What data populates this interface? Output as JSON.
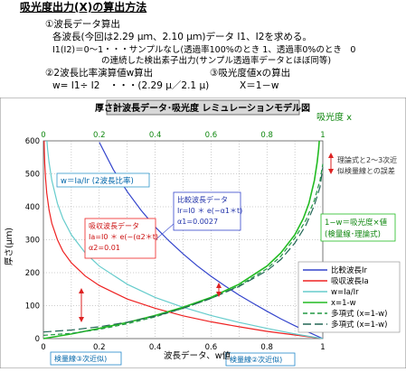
{
  "header": {
    "title": "吸光度出力(X)の算出方法",
    "line1": "①波長データ算出",
    "line2": "各波長(今回は2.29 μｍ、2.10 μｍ)データ I1、I2を求める。",
    "line3": "I1(I2)＝0～1・・・サンプルなし(透過率100%のとき 1、透過率0%のとき　0",
    "line4": "の連続した検出素子出力(サンプル透過率データとほぼ同等)",
    "line5a": "②2波長比率演算値w算出",
    "line5b": "③吸光度値xの算出",
    "line6a": "w= I1÷ I2　・・・(2.29 μ／2.1 μ)",
    "line6b": "X＝1－w"
  },
  "chart_data": {
    "type": "line",
    "title": "厚さ計波長データ･吸光度 レミュレーションモデル図",
    "top_axis_label": "吸光度 x",
    "xlabel": "波長データ、w値",
    "ylabel": "厚さ(μｍ)",
    "xlim": [
      0,
      1
    ],
    "ylim": [
      0,
      600
    ],
    "xticks": [
      "0",
      "0.2",
      "0.4",
      "0.6",
      "0.8",
      "1"
    ],
    "yticks": [
      "0",
      "100",
      "200",
      "300",
      "400",
      "500",
      "600"
    ],
    "top_ticks": [
      "0",
      "0.2",
      "0.4",
      "0.6",
      "0.8",
      "1"
    ],
    "grid": true,
    "legend_position": "lower-right",
    "params": {
      "alpha1": 0.0027,
      "alpha2": 0.01
    },
    "series": [
      {
        "name": "比較波長Ir",
        "color": "#3344cc",
        "dash": "solid",
        "points": [
          [
            1.0,
            0
          ],
          [
            0.95,
            19
          ],
          [
            0.9,
            39
          ],
          [
            0.85,
            60
          ],
          [
            0.8,
            83
          ],
          [
            0.75,
            107
          ],
          [
            0.7,
            132
          ],
          [
            0.65,
            160
          ],
          [
            0.6,
            189
          ],
          [
            0.55,
            221
          ],
          [
            0.5,
            257
          ],
          [
            0.45,
            296
          ],
          [
            0.4,
            339
          ],
          [
            0.35,
            389
          ],
          [
            0.3,
            446
          ],
          [
            0.25,
            513
          ],
          [
            0.2,
            596
          ]
        ]
      },
      {
        "name": "吸収波長Ia",
        "color": "#ee2222",
        "dash": "solid",
        "points": [
          [
            1.0,
            0
          ],
          [
            0.9,
            11
          ],
          [
            0.8,
            22
          ],
          [
            0.7,
            36
          ],
          [
            0.6,
            51
          ],
          [
            0.5,
            69
          ],
          [
            0.4,
            92
          ],
          [
            0.3,
            120
          ],
          [
            0.2,
            161
          ],
          [
            0.15,
            190
          ],
          [
            0.1,
            230
          ],
          [
            0.07,
            265
          ],
          [
            0.05,
            300
          ],
          [
            0.03,
            350
          ],
          [
            0.02,
            391
          ],
          [
            0.012,
            442
          ],
          [
            0.008,
            482
          ],
          [
            0.005,
            530
          ],
          [
            0.0035,
            565
          ],
          [
            0.0025,
            600
          ]
        ]
      },
      {
        "name": "w=Ia/Ir",
        "color": "#66cccc",
        "dash": "solid",
        "points": [
          [
            1.0,
            0
          ],
          [
            0.9,
            14
          ],
          [
            0.8,
            31
          ],
          [
            0.7,
            49
          ],
          [
            0.6,
            70
          ],
          [
            0.5,
            95
          ],
          [
            0.4,
            125
          ],
          [
            0.3,
            165
          ],
          [
            0.2,
            220
          ],
          [
            0.15,
            260
          ],
          [
            0.1,
            315
          ],
          [
            0.07,
            364
          ],
          [
            0.05,
            410
          ],
          [
            0.03,
            480
          ],
          [
            0.02,
            536
          ],
          [
            0.015,
            575
          ],
          [
            0.0125,
            600
          ]
        ]
      },
      {
        "name": "x=1-w",
        "color": "#22bb22",
        "dash": "solid",
        "points": [
          [
            0,
            0
          ],
          [
            0.1,
            14
          ],
          [
            0.2,
            31
          ],
          [
            0.3,
            49
          ],
          [
            0.4,
            70
          ],
          [
            0.5,
            95
          ],
          [
            0.6,
            125
          ],
          [
            0.7,
            165
          ],
          [
            0.8,
            220
          ],
          [
            0.85,
            260
          ],
          [
            0.9,
            315
          ],
          [
            0.93,
            364
          ],
          [
            0.95,
            410
          ],
          [
            0.97,
            480
          ],
          [
            0.98,
            536
          ],
          [
            0.985,
            575
          ],
          [
            0.9875,
            600
          ]
        ]
      },
      {
        "name": "多項式 (x=1-w)",
        "color": "#229944",
        "dash": "dash",
        "points": [
          [
            0,
            10
          ],
          [
            0.1,
            16
          ],
          [
            0.2,
            28
          ],
          [
            0.3,
            45
          ],
          [
            0.4,
            66
          ],
          [
            0.5,
            92
          ],
          [
            0.6,
            122
          ],
          [
            0.7,
            160
          ],
          [
            0.8,
            212
          ],
          [
            0.85,
            250
          ],
          [
            0.9,
            305
          ],
          [
            0.94,
            360
          ],
          [
            0.97,
            420
          ],
          [
            0.99,
            480
          ],
          [
            1.0,
            530
          ]
        ]
      },
      {
        "name": "多項式 (x=1-w)",
        "color": "#226655",
        "dash": "longdash",
        "points": [
          [
            0,
            20
          ],
          [
            0.1,
            26
          ],
          [
            0.2,
            36
          ],
          [
            0.3,
            50
          ],
          [
            0.4,
            68
          ],
          [
            0.5,
            92
          ],
          [
            0.6,
            122
          ],
          [
            0.7,
            158
          ],
          [
            0.8,
            206
          ],
          [
            0.85,
            240
          ],
          [
            0.9,
            290
          ],
          [
            0.94,
            345
          ],
          [
            0.97,
            405
          ],
          [
            0.99,
            460
          ],
          [
            1.0,
            520
          ]
        ]
      }
    ],
    "annotations": {
      "w_box": "w＝Ia/Ir (2波長比率)",
      "ref_box": [
        "比較波長データ",
        "Ir=I0 ＊ e(−α1＊t)",
        "α1=0.0027"
      ],
      "abs_box": [
        "吸収波長データ",
        "Ia=I0 ＊ e(−(α2＊t)",
        "α2=0.01"
      ],
      "x_box": [
        "1−w＝吸光度×値",
        "(検量線･理論式)"
      ],
      "theory_note": [
        "理論式と2～3次近",
        "似検量線との誤差"
      ],
      "cal3": "検量線③次近似)",
      "cal2": "検量線②次近似)"
    }
  }
}
